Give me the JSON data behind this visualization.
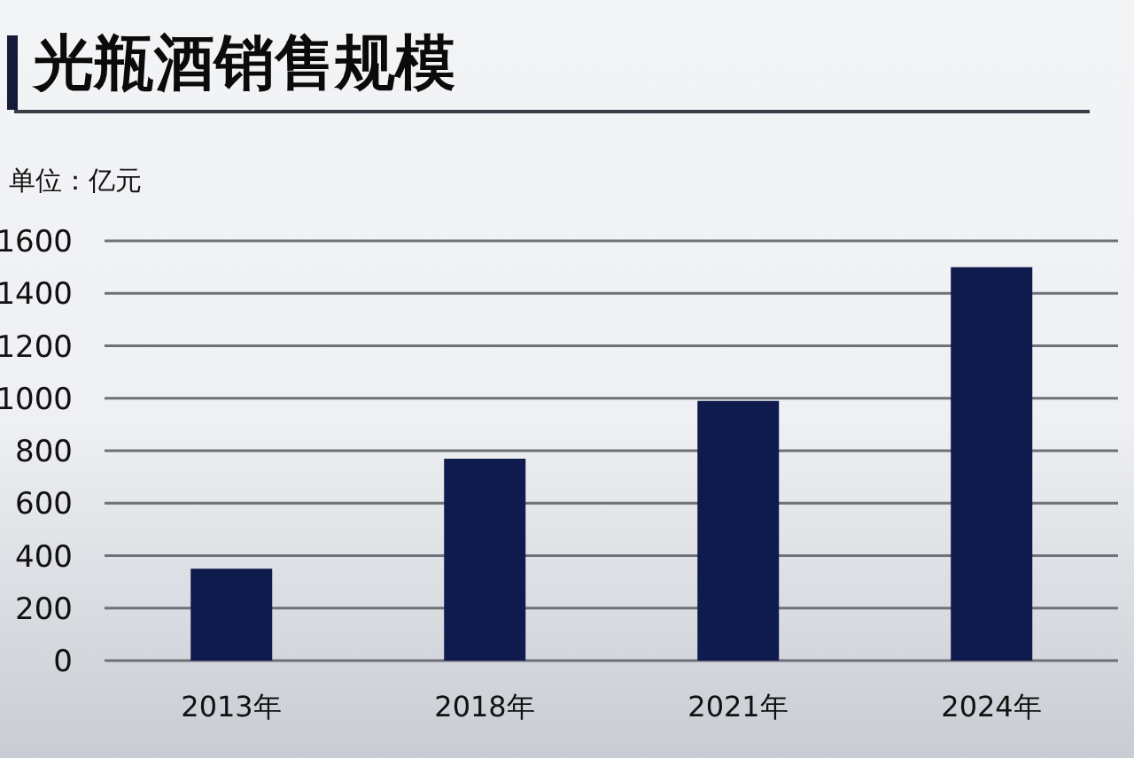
{
  "chart_data": {
    "type": "bar",
    "title": "光瓶酒销售规模",
    "ylabel": "单位：亿元",
    "categories": [
      "2013年",
      "2018年",
      "2021年",
      "2024年"
    ],
    "values": [
      350,
      770,
      990,
      1500
    ],
    "color": "#0f1a4d",
    "ylim": [
      0,
      1600
    ],
    "yticks": [
      0,
      200,
      400,
      600,
      800,
      1000,
      1200,
      1400,
      1600
    ],
    "grid": "y"
  }
}
